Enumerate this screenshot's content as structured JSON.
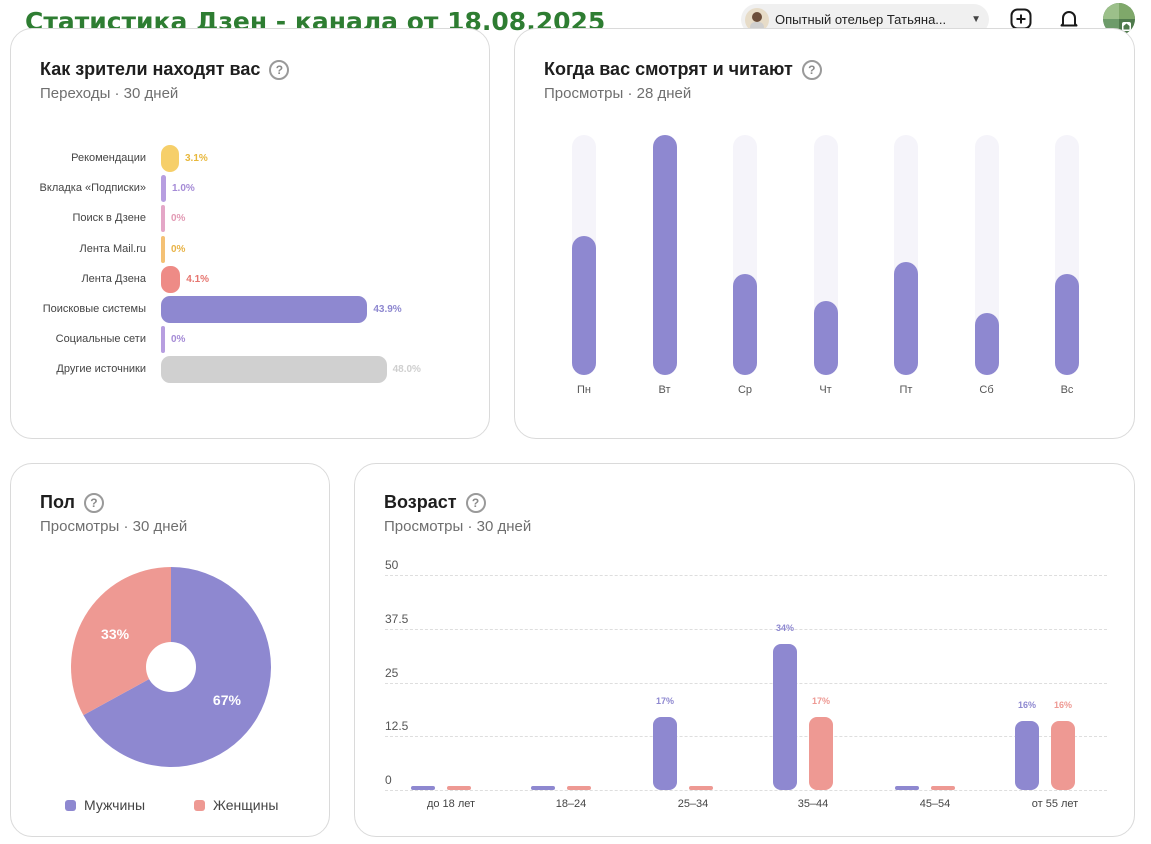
{
  "header": {
    "title": "Статистика Дзен - канала от 18.08.2025",
    "user_name": "Опытный отельер Татьяна...",
    "colors": {
      "title": "#2e7d32"
    }
  },
  "sources": {
    "title": "Как зрители находят вас",
    "subtitle": "Переходы · 30 дней",
    "chart_data": {
      "type": "bar",
      "orientation": "horizontal",
      "title": "Как зрители находят вас",
      "categories": [
        "Рекомендации",
        "Вкладка «Подписки»",
        "Поиск в Дзене",
        "Лента Mail.ru",
        "Лента Дзена",
        "Поисковые системы",
        "Социальные сети",
        "Другие источники"
      ],
      "values": [
        3.1,
        1.0,
        0,
        0,
        4.1,
        43.9,
        0,
        48.0
      ],
      "labels": [
        "3.1%",
        "1.0%",
        "0%",
        "0%",
        "4.1%",
        "43.9%",
        "0%",
        "48.0%"
      ],
      "colors": [
        "#f6cf6a",
        "#b79ee0",
        "#e4a7c7",
        "#f4c175",
        "#ee8b86",
        "#8e88d0",
        "#b79ee0",
        "#d0d0d0"
      ],
      "label_colors": [
        "#e8b83c",
        "#a58bd6",
        "#e29ab4",
        "#e8b347",
        "#e6756f",
        "#8e88d0",
        "#a58bd6",
        "#cfcfcf"
      ],
      "unit": "%"
    }
  },
  "weekdays": {
    "title": "Когда вас смотрят и читают",
    "subtitle": "Просмотры · 28 дней",
    "chart_data": {
      "type": "bar",
      "title": "Когда вас смотрят и читают",
      "categories": [
        "Пн",
        "Вт",
        "Ср",
        "Чт",
        "Пт",
        "Сб",
        "Вс"
      ],
      "values": [
        58,
        100,
        42,
        31,
        47,
        26,
        42
      ],
      "ylim": [
        0,
        100
      ],
      "unit": "relative %",
      "color": "#8e88d0"
    }
  },
  "gender": {
    "title": "Пол",
    "subtitle": "Просмотры · 30 дней",
    "chart_data": {
      "type": "pie",
      "title": "Пол",
      "categories": [
        "Мужчины",
        "Женщины"
      ],
      "values": [
        67,
        33
      ],
      "labels": [
        "67%",
        "33%"
      ],
      "colors": [
        "#8e88d0",
        "#ee9993"
      ]
    }
  },
  "age": {
    "title": "Возраст",
    "subtitle": "Просмотры · 30 дней",
    "chart_data": {
      "type": "bar",
      "title": "Возраст",
      "categories": [
        "до 18 лет",
        "18–24",
        "25–34",
        "35–44",
        "45–54",
        "от 55 лет"
      ],
      "yticks": [
        "50",
        "37.5",
        "25",
        "12.5",
        "0"
      ],
      "ylim": [
        0,
        50
      ],
      "series": [
        {
          "name": "Мужчины",
          "color": "#8e88d0",
          "values": [
            0,
            0,
            17,
            34,
            0,
            16
          ],
          "labels": [
            "",
            "",
            "17%",
            "34%",
            "",
            "16%"
          ]
        },
        {
          "name": "Женщины",
          "color": "#ee9993",
          "values": [
            0,
            0,
            0,
            17,
            0,
            16
          ],
          "labels": [
            "",
            "",
            "",
            "17%",
            "",
            "16%"
          ]
        }
      ]
    }
  }
}
